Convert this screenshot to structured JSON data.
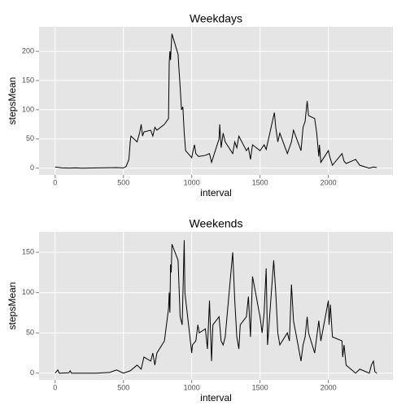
{
  "chart_data": [
    {
      "type": "line",
      "title": "Weekdays",
      "xlabel": "interval",
      "ylabel": "stepsMean",
      "color": "#000000",
      "grid": true,
      "xlim": [
        -117.75,
        2472.75
      ],
      "xticks": [
        0,
        500,
        1000,
        1500,
        2000
      ],
      "ylim": [
        -11.5,
        241.9
      ],
      "yticks": [
        0,
        50,
        100,
        150,
        200
      ],
      "x": [
        0,
        50,
        100,
        150,
        200,
        300,
        400,
        450,
        500,
        520,
        540,
        550,
        555,
        600,
        620,
        630,
        640,
        650,
        700,
        715,
        730,
        745,
        800,
        830,
        835,
        840,
        845,
        850,
        855,
        900,
        905,
        915,
        925,
        935,
        945,
        955,
        1000,
        1010,
        1020,
        1030,
        1050,
        1100,
        1130,
        1145,
        1200,
        1205,
        1215,
        1230,
        1245,
        1300,
        1315,
        1330,
        1345,
        1400,
        1415,
        1430,
        1445,
        1500,
        1530,
        1545,
        1600,
        1605,
        1615,
        1630,
        1645,
        1700,
        1715,
        1730,
        1745,
        1800,
        1815,
        1830,
        1845,
        1855,
        1900,
        1915,
        1930,
        1935,
        1945,
        2000,
        2010,
        2030,
        2100,
        2115,
        2130,
        2200,
        2230,
        2300,
        2330,
        2355
      ],
      "values": [
        2,
        0.5,
        0.2,
        0.5,
        0,
        0.5,
        0.8,
        1,
        0.5,
        3,
        15,
        46,
        55,
        45,
        62,
        75,
        55,
        62,
        65,
        55,
        70,
        65,
        75,
        85,
        180,
        200,
        185,
        210,
        230,
        195,
        175,
        140,
        100,
        105,
        60,
        30,
        18,
        30,
        40,
        25,
        20,
        22,
        25,
        10,
        50,
        75,
        35,
        60,
        45,
        25,
        45,
        35,
        55,
        30,
        35,
        15,
        40,
        30,
        40,
        32,
        90,
        95,
        70,
        45,
        60,
        25,
        35,
        45,
        65,
        30,
        70,
        80,
        115,
        90,
        85,
        60,
        20,
        40,
        10,
        30,
        20,
        5,
        25,
        12,
        8,
        15,
        5,
        0,
        2,
        1
      ]
    },
    {
      "type": "line",
      "title": "Weekends",
      "xlabel": "interval",
      "ylabel": "stepsMean",
      "color": "#000000",
      "grid": true,
      "xlim": [
        -117.75,
        2472.75
      ],
      "xticks": [
        0,
        500,
        1000,
        1500,
        2000
      ],
      "ylim": [
        -8.35,
        175.35
      ],
      "yticks": [
        0,
        50,
        100,
        150
      ],
      "x": [
        0,
        20,
        30,
        100,
        110,
        120,
        200,
        300,
        400,
        450,
        500,
        550,
        600,
        630,
        650,
        700,
        715,
        730,
        745,
        800,
        830,
        835,
        840,
        845,
        850,
        855,
        900,
        915,
        930,
        945,
        950,
        1000,
        1005,
        1030,
        1045,
        1055,
        1100,
        1115,
        1130,
        1145,
        1155,
        1200,
        1215,
        1230,
        1245,
        1300,
        1315,
        1330,
        1345,
        1355,
        1400,
        1415,
        1430,
        1445,
        1500,
        1515,
        1530,
        1545,
        1555,
        1600,
        1615,
        1630,
        1645,
        1700,
        1715,
        1730,
        1745,
        1800,
        1815,
        1830,
        1845,
        1855,
        1900,
        1915,
        1930,
        1945,
        2000,
        2005,
        2015,
        2030,
        2100,
        2105,
        2115,
        2130,
        2200,
        2230,
        2300,
        2315,
        2330,
        2340,
        2355
      ],
      "values": [
        0.2,
        4,
        0,
        0.5,
        3,
        0,
        0,
        0,
        1,
        4,
        0,
        3,
        10,
        5,
        20,
        15,
        25,
        10,
        25,
        40,
        80,
        100,
        75,
        135,
        125,
        160,
        140,
        70,
        60,
        165,
        100,
        25,
        35,
        40,
        60,
        50,
        55,
        30,
        90,
        15,
        60,
        70,
        40,
        35,
        45,
        150,
        90,
        45,
        30,
        60,
        70,
        95,
        45,
        120,
        70,
        50,
        75,
        130,
        35,
        140,
        100,
        50,
        35,
        50,
        40,
        110,
        65,
        15,
        35,
        45,
        70,
        50,
        25,
        45,
        65,
        40,
        90,
        60,
        85,
        45,
        40,
        20,
        35,
        10,
        0,
        5,
        0,
        10,
        15,
        2,
        0
      ]
    }
  ]
}
